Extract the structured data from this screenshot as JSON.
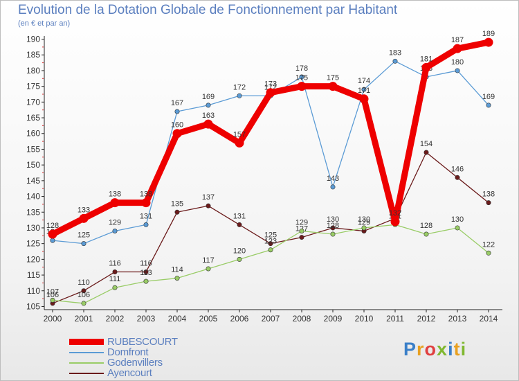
{
  "header": {
    "title": "Evolution de la Dotation Globale de Fonctionnement par Habitant",
    "subtitle": "(en € et par an)"
  },
  "logo": {
    "p": "P",
    "r": "r",
    "o": "o",
    "x": "x",
    "i": "i",
    "t": "t",
    "i2": "i"
  },
  "chart_data": {
    "type": "line",
    "title": "Evolution de la Dotation Globale de Fonctionnement par Habitant",
    "subtitle": "(en € et par an)",
    "x": [
      "2000",
      "2001",
      "2002",
      "2003",
      "2004",
      "2005",
      "2006",
      "2007",
      "2008",
      "2009",
      "2010",
      "2011",
      "2012",
      "2013",
      "2014"
    ],
    "yticks": [
      105,
      110,
      115,
      120,
      125,
      130,
      135,
      140,
      145,
      150,
      155,
      160,
      165,
      170,
      175,
      180,
      185,
      190
    ],
    "ylim": [
      104,
      191
    ],
    "series": [
      {
        "name": "Ayencourt",
        "color": "#6b1b1b",
        "values": [
          106,
          110,
          116,
          116,
          135,
          137,
          131,
          125,
          127,
          130,
          129,
          133,
          154,
          146,
          138
        ],
        "labels": [
          "106",
          "110",
          "116",
          "116",
          "135",
          "137",
          "131",
          "125",
          "127",
          "130",
          "129",
          "133",
          "154",
          "146",
          "138"
        ]
      },
      {
        "name": "Godenvillers",
        "color": "#99cc66",
        "values": [
          107,
          106,
          111,
          113,
          114,
          117,
          120,
          123,
          129,
          128,
          130,
          131,
          128,
          130,
          122
        ],
        "labels": [
          "107",
          "106",
          "111",
          "113",
          "114",
          "117",
          "120",
          "123",
          "129",
          "128",
          "130",
          "131",
          "128",
          "130",
          "122"
        ]
      },
      {
        "name": "Domfront",
        "color": "#5b9bd5",
        "values": [
          126,
          125,
          129,
          131,
          167,
          169,
          172,
          172,
          178,
          143,
          174,
          183,
          178,
          180,
          169
        ],
        "labels": [
          "126",
          "125",
          "129",
          "131",
          "167",
          "169",
          "172",
          "172",
          "178",
          "143",
          "174",
          "183",
          "178",
          "180",
          "169"
        ]
      },
      {
        "name": "RUBESCOURT",
        "color": "#ee0000",
        "values": [
          128,
          133,
          138,
          138,
          160,
          163,
          157,
          173,
          175,
          175,
          171,
          132,
          181,
          187,
          189
        ],
        "labels": [
          "128",
          "133",
          "138",
          "138",
          "160",
          "163",
          "157",
          "173",
          "175",
          "175",
          "171",
          "132",
          "181",
          "187",
          "189"
        ]
      }
    ],
    "legend_order": [
      "RUBESCOURT",
      "Domfront",
      "Godenvillers",
      "Ayencourt"
    ],
    "grid": false,
    "legend_position": "bottom-left"
  }
}
